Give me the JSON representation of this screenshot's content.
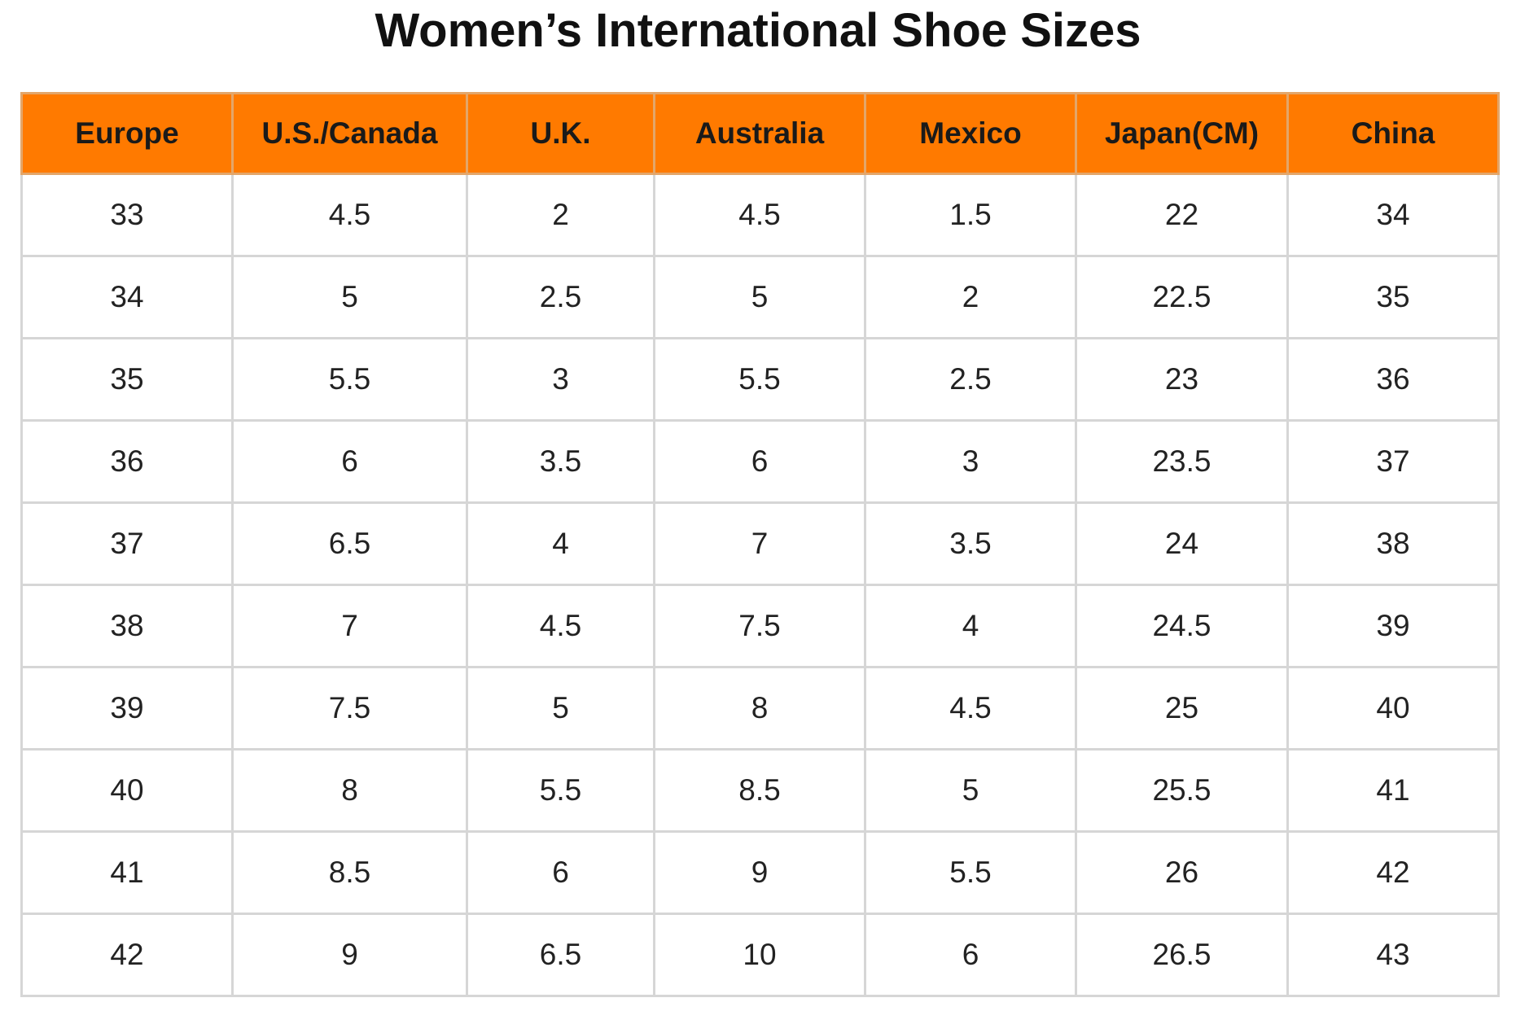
{
  "title": "Women’s International Shoe Sizes",
  "colors": {
    "header_bg": "#ff7a00",
    "grid": "#d6d6d6"
  },
  "table": {
    "headers": [
      "Europe",
      "U.S./Canada",
      "U.K.",
      "Australia",
      "Mexico",
      "Japan(CM)",
      "China"
    ],
    "rows": [
      [
        "33",
        "4.5",
        "2",
        "4.5",
        "1.5",
        "22",
        "34"
      ],
      [
        "34",
        "5",
        "2.5",
        "5",
        "2",
        "22.5",
        "35"
      ],
      [
        "35",
        "5.5",
        "3",
        "5.5",
        "2.5",
        "23",
        "36"
      ],
      [
        "36",
        "6",
        "3.5",
        "6",
        "3",
        "23.5",
        "37"
      ],
      [
        "37",
        "6.5",
        "4",
        "7",
        "3.5",
        "24",
        "38"
      ],
      [
        "38",
        "7",
        "4.5",
        "7.5",
        "4",
        "24.5",
        "39"
      ],
      [
        "39",
        "7.5",
        "5",
        "8",
        "4.5",
        "25",
        "40"
      ],
      [
        "40",
        "8",
        "5.5",
        "8.5",
        "5",
        "25.5",
        "41"
      ],
      [
        "41",
        "8.5",
        "6",
        "9",
        "5.5",
        "26",
        "42"
      ],
      [
        "42",
        "9",
        "6.5",
        "10",
        "6",
        "26.5",
        "43"
      ]
    ]
  }
}
